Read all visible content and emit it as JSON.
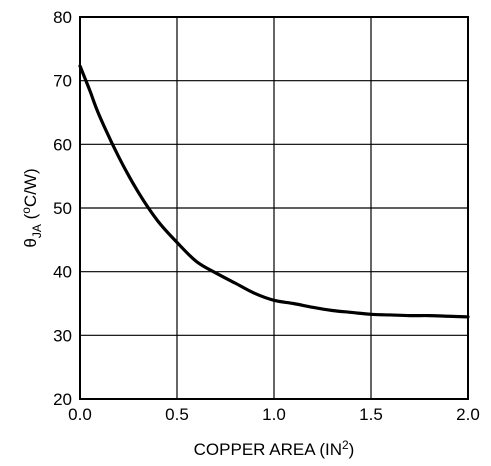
{
  "chart_data": {
    "type": "line",
    "title": "",
    "xlabel": "COPPER AREA (IN",
    "xlabel_superscript": "2",
    "xlabel_suffix": ")",
    "ylabel_main": "θ",
    "ylabel_subscript": "JA",
    "ylabel_unit_open": " (",
    "ylabel_unit_superscript": "o",
    "ylabel_unit_rest": "C/W)",
    "xlim": [
      0,
      2
    ],
    "ylim": [
      20,
      80
    ],
    "x_ticks": [
      "0.0",
      "0.5",
      "1.0",
      "1.5",
      "2.0"
    ],
    "x_tick_values": [
      0,
      0.5,
      1,
      1.5,
      2
    ],
    "y_ticks": [
      "20",
      "30",
      "40",
      "50",
      "60",
      "70",
      "80"
    ],
    "y_tick_values": [
      20,
      30,
      40,
      50,
      60,
      70,
      80
    ],
    "grid": true,
    "series": [
      {
        "x": [
          0,
          0.05,
          0.1,
          0.2,
          0.3,
          0.4,
          0.5,
          0.6,
          0.7,
          0.8,
          0.9,
          1.0,
          1.1,
          1.2,
          1.3,
          1.4,
          1.5,
          1.6,
          1.7,
          1.8,
          1.9,
          2.0
        ],
        "y": [
          72.3,
          68.5,
          64.5,
          58,
          52.5,
          48,
          44.6,
          41.6,
          39.8,
          38.2,
          36.6,
          35.5,
          35,
          34.4,
          33.9,
          33.6,
          33.3,
          33.2,
          33.1,
          33.1,
          33.0,
          32.9
        ]
      }
    ]
  }
}
